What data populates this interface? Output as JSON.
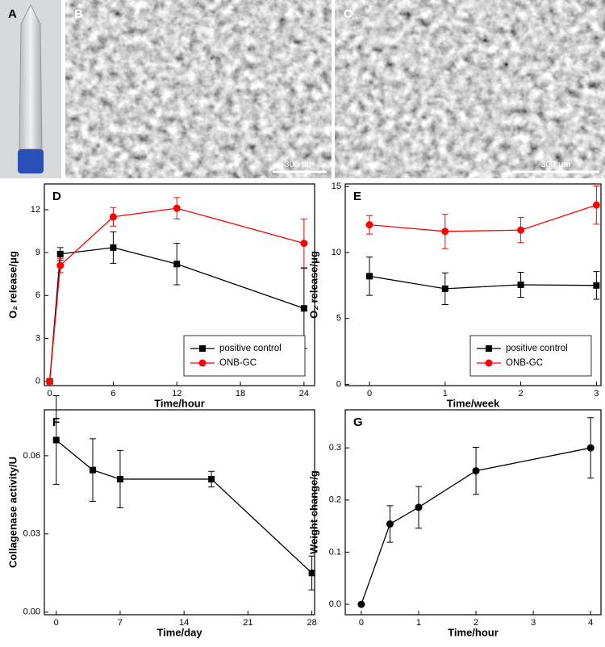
{
  "images": [
    {
      "label": "A"
    },
    {
      "label": "B",
      "scale_bar": "300 μm"
    },
    {
      "label": "C",
      "scale_bar": "300 μm"
    }
  ],
  "chart_data": [
    {
      "type": "line",
      "panel": "D",
      "xlabel": "Time/hour",
      "ylabel": "O₂ release/μg",
      "x": [
        0,
        1,
        6,
        12,
        24
      ],
      "series": [
        {
          "name": "positive control",
          "color": "#000000",
          "marker": "square",
          "values": [
            0,
            8.9,
            9.35,
            8.2,
            5.1
          ],
          "errors": [
            0,
            0.45,
            1.1,
            1.45,
            2.8
          ]
        },
        {
          "name": "ONB-GC",
          "color": "#ff0000",
          "marker": "circle",
          "values": [
            0,
            8.1,
            11.5,
            12.1,
            9.65
          ],
          "errors": [
            0,
            0.5,
            0.65,
            0.75,
            1.7
          ]
        }
      ],
      "xlim": [
        -0.5,
        25
      ],
      "ylim": [
        -0.3,
        13.8
      ],
      "xticks": [
        0,
        6,
        12,
        18,
        24
      ],
      "yticks": [
        0,
        3,
        6,
        9,
        12
      ],
      "legend": "lower right"
    },
    {
      "type": "line",
      "panel": "E",
      "xlabel": "Time/week",
      "ylabel": "O₂ release/μg",
      "x": [
        0,
        1,
        2,
        3
      ],
      "series": [
        {
          "name": "positive control",
          "color": "#000000",
          "marker": "square",
          "values": [
            8.2,
            7.25,
            7.55,
            7.5
          ],
          "errors": [
            1.45,
            1.2,
            0.95,
            1.05
          ]
        },
        {
          "name": "ONB-GC",
          "color": "#ff0000",
          "marker": "circle",
          "values": [
            12.1,
            11.6,
            11.7,
            13.6
          ],
          "errors": [
            0.7,
            1.3,
            0.95,
            1.45
          ]
        }
      ],
      "xlim": [
        -0.32,
        3.06
      ],
      "ylim": [
        -0.1,
        15.2
      ],
      "xticks": [
        0,
        1,
        2,
        3
      ],
      "yticks": [
        0,
        5,
        10,
        15
      ],
      "legend": "lower right"
    },
    {
      "type": "line",
      "panel": "F",
      "xlabel": "Time/day",
      "ylabel": "Collagenase activity/U",
      "x": [
        0,
        4,
        7,
        17,
        28
      ],
      "series": [
        {
          "color": "#000000",
          "marker": "square",
          "values": [
            0.066,
            0.0545,
            0.051,
            0.051,
            0.015
          ],
          "errors": [
            0.017,
            0.012,
            0.011,
            0.003,
            0.0065
          ]
        }
      ],
      "xlim": [
        -1.3,
        28.3
      ],
      "ylim": [
        -0.001,
        0.0776
      ],
      "xticks": [
        0,
        7,
        14,
        21,
        28
      ],
      "yticks": [
        {
          "value": 0,
          "label": "0.00"
        },
        0.03,
        0.06
      ]
    },
    {
      "type": "line",
      "panel": "G",
      "xlabel": "Time/hour",
      "ylabel": "Weight change/g",
      "x": [
        0,
        0.5,
        1,
        2,
        4
      ],
      "series": [
        {
          "color": "#000000",
          "marker": "circle",
          "values": [
            0,
            0.154,
            0.186,
            0.256,
            0.3
          ],
          "errors": [
            0,
            0.035,
            0.04,
            0.045,
            0.058
          ]
        }
      ],
      "xlim": [
        -0.28,
        4.18
      ],
      "ylim": [
        -0.02,
        0.373
      ],
      "xticks": [
        0,
        1,
        2,
        3,
        4
      ],
      "yticks": [
        {
          "value": 0,
          "label": "0.0"
        },
        0.1,
        0.2,
        0.3
      ]
    }
  ]
}
